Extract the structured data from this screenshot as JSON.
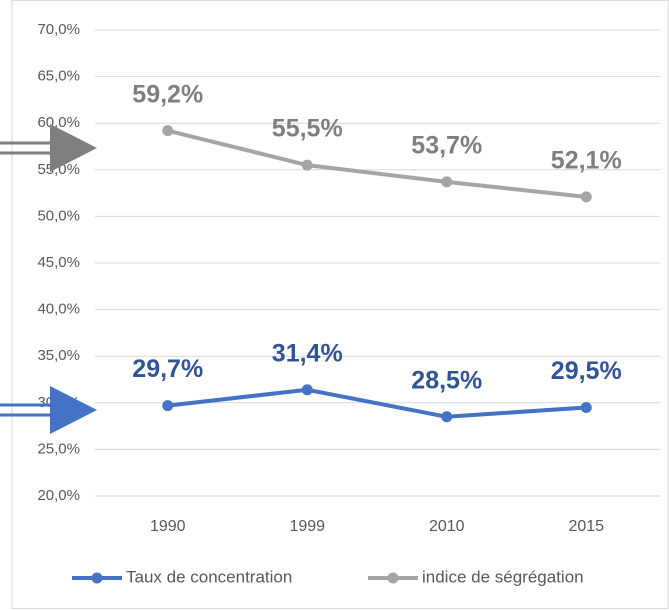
{
  "chart_data": {
    "type": "line",
    "categories": [
      "1990",
      "1999",
      "2010",
      "2015"
    ],
    "series": [
      {
        "name": "Taux de concentration",
        "color": "#4472c4",
        "label_color": "#2f5597",
        "values": [
          29.7,
          31.4,
          28.5,
          29.5
        ],
        "value_labels": [
          "29,7%",
          "31,4%",
          "28,5%",
          "29,5%"
        ]
      },
      {
        "name": "indice de ségrégation",
        "color": "#a5a5a5",
        "label_color": "#7f7f7f",
        "values": [
          59.2,
          55.5,
          53.7,
          52.1
        ],
        "value_labels": [
          "59,2%",
          "55,5%",
          "53,7%",
          "52,1%"
        ]
      }
    ],
    "ylim": [
      20,
      70
    ],
    "yticks": [
      {
        "value": 20,
        "label": "20,0%"
      },
      {
        "value": 25,
        "label": "25,0%"
      },
      {
        "value": 30,
        "label": "30,0%"
      },
      {
        "value": 35,
        "label": "35,0%"
      },
      {
        "value": 40,
        "label": "40,0%"
      },
      {
        "value": 45,
        "label": "45,0%"
      },
      {
        "value": 50,
        "label": "50,0%"
      },
      {
        "value": 55,
        "label": "55,0%"
      },
      {
        "value": 60,
        "label": "60,0%"
      },
      {
        "value": 65,
        "label": "65,0%"
      },
      {
        "value": 70,
        "label": "70,0%"
      }
    ],
    "grid": true,
    "legend": "bottom"
  }
}
